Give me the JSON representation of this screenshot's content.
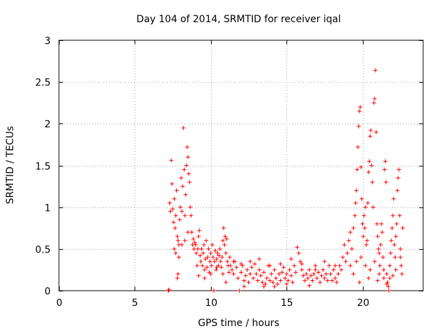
{
  "chart_data": {
    "type": "scatter",
    "title": "Day 104 of 2014, SRMTID for receiver iqal",
    "xlabel": "GPS time / hours",
    "ylabel": "SRMTID / TECUs",
    "xlim": [
      0,
      24
    ],
    "ylim": [
      0,
      3
    ],
    "x_ticks": [
      0,
      5,
      10,
      15,
      20
    ],
    "y_ticks": [
      0,
      0.5,
      1,
      1.5,
      2,
      2.5,
      3
    ],
    "x_tick_labels": [
      "0",
      "5",
      "10",
      "15",
      "20"
    ],
    "y_tick_labels": [
      "0",
      "0.5",
      "1",
      "1.5",
      "2",
      "2.5",
      "3"
    ],
    "grid": true,
    "marker": "+",
    "series": [
      {
        "name": "SRMTID",
        "color": "#ff0000",
        "points": [
          [
            7.2,
            0.0
          ],
          [
            7.25,
            0.01
          ],
          [
            7.3,
            1.05
          ],
          [
            7.35,
            0.95
          ],
          [
            7.4,
            1.56
          ],
          [
            7.45,
            1.28
          ],
          [
            7.5,
            0.98
          ],
          [
            7.55,
            0.82
          ],
          [
            7.6,
            1.1
          ],
          [
            7.65,
            0.75
          ],
          [
            7.7,
            0.9
          ],
          [
            7.75,
            1.2
          ],
          [
            7.8,
            0.65
          ],
          [
            7.85,
            0.6
          ],
          [
            7.9,
            0.55
          ],
          [
            7.95,
            0.85
          ],
          [
            8.0,
            1.0
          ],
          [
            8.05,
            1.35
          ],
          [
            8.1,
            0.95
          ],
          [
            8.15,
            1.25
          ],
          [
            8.2,
            1.95
          ],
          [
            8.25,
            1.45
          ],
          [
            8.3,
            0.9
          ],
          [
            8.35,
            1.15
          ],
          [
            8.4,
            1.5
          ],
          [
            8.45,
            1.72
          ],
          [
            8.5,
            1.6
          ],
          [
            8.55,
            1.4
          ],
          [
            8.6,
            1.3
          ],
          [
            8.65,
            1.0
          ],
          [
            8.7,
            0.9
          ],
          [
            8.75,
            0.7
          ],
          [
            8.8,
            0.55
          ],
          [
            8.85,
            0.62
          ],
          [
            8.9,
            0.5
          ],
          [
            8.95,
            0.58
          ],
          [
            7.7,
            0.45
          ],
          [
            7.9,
            0.4
          ],
          [
            8.1,
            0.55
          ],
          [
            8.3,
            0.6
          ],
          [
            8.5,
            0.7
          ],
          [
            7.6,
            0.5
          ],
          [
            7.8,
            0.15
          ],
          [
            7.85,
            0.2
          ],
          [
            9.0,
            0.55
          ],
          [
            9.05,
            0.45
          ],
          [
            9.1,
            0.3
          ],
          [
            9.15,
            0.5
          ],
          [
            9.2,
            0.65
          ],
          [
            9.25,
            0.72
          ],
          [
            9.3,
            0.42
          ],
          [
            9.35,
            0.35
          ],
          [
            9.4,
            0.5
          ],
          [
            9.45,
            0.3
          ],
          [
            9.5,
            0.45
          ],
          [
            9.55,
            0.55
          ],
          [
            9.6,
            0.25
          ],
          [
            9.65,
            0.38
          ],
          [
            9.7,
            0.6
          ],
          [
            9.75,
            0.28
          ],
          [
            9.8,
            0.4
          ],
          [
            9.85,
            0.5
          ],
          [
            9.9,
            0.22
          ],
          [
            9.95,
            0.35
          ],
          [
            10.0,
            0.45
          ],
          [
            10.05,
            0.3
          ],
          [
            10.1,
            0.55
          ],
          [
            10.15,
            0.4
          ],
          [
            10.2,
            0.0
          ],
          [
            10.25,
            0.35
          ],
          [
            10.3,
            0.48
          ],
          [
            10.35,
            0.25
          ],
          [
            10.4,
            0.38
          ],
          [
            10.45,
            0.45
          ],
          [
            10.5,
            0.3
          ],
          [
            10.55,
            0.42
          ],
          [
            10.6,
            0.5
          ],
          [
            10.65,
            0.35
          ],
          [
            10.7,
            0.28
          ],
          [
            10.75,
            0.4
          ],
          [
            10.8,
            0.6
          ],
          [
            10.85,
            0.75
          ],
          [
            10.9,
            0.55
          ],
          [
            10.95,
            0.65
          ],
          [
            11.0,
            0.45
          ],
          [
            11.05,
            0.62
          ],
          [
            11.1,
            0.35
          ],
          [
            11.15,
            0.3
          ],
          [
            11.2,
            0.22
          ],
          [
            11.25,
            0.4
          ],
          [
            9.2,
            0.18
          ],
          [
            9.6,
            0.15
          ],
          [
            10.0,
            0.2
          ],
          [
            10.4,
            0.28
          ],
          [
            10.8,
            0.2
          ],
          [
            11.3,
            0.3
          ],
          [
            11.4,
            0.25
          ],
          [
            11.5,
            0.2
          ],
          [
            11.6,
            0.35
          ],
          [
            11.7,
            0.28
          ],
          [
            11.8,
            0.15
          ],
          [
            11.9,
            0.0
          ],
          [
            12.0,
            0.22
          ],
          [
            12.1,
            0.3
          ],
          [
            12.2,
            0.12
          ],
          [
            12.3,
            0.18
          ],
          [
            12.4,
            0.25
          ],
          [
            12.5,
            0.1
          ],
          [
            12.6,
            0.2
          ],
          [
            12.7,
            0.28
          ],
          [
            12.8,
            0.15
          ],
          [
            12.9,
            0.32
          ],
          [
            13.0,
            0.2
          ],
          [
            13.1,
            0.12
          ],
          [
            13.2,
            0.25
          ],
          [
            13.3,
            0.18
          ],
          [
            13.4,
            0.1
          ],
          [
            13.5,
            0.22
          ],
          [
            13.6,
            0.08
          ],
          [
            13.7,
            0.15
          ],
          [
            13.8,
            0.3
          ],
          [
            13.9,
            0.12
          ],
          [
            14.0,
            0.2
          ],
          [
            14.1,
            0.1
          ],
          [
            14.2,
            0.25
          ],
          [
            14.3,
            0.15
          ],
          [
            14.4,
            0.08
          ],
          [
            14.5,
            0.2
          ],
          [
            14.6,
            0.12
          ],
          [
            14.7,
            0.22
          ],
          [
            14.8,
            0.28
          ],
          [
            14.9,
            0.15
          ],
          [
            15.0,
            0.2
          ],
          [
            15.1,
            0.12
          ],
          [
            15.2,
            0.25
          ],
          [
            15.3,
            0.18
          ],
          [
            15.4,
            0.1
          ],
          [
            15.5,
            0.3
          ],
          [
            15.6,
            0.22
          ],
          [
            15.7,
            0.52
          ],
          [
            15.8,
            0.45
          ],
          [
            15.9,
            0.35
          ],
          [
            16.0,
            0.25
          ],
          [
            16.1,
            0.18
          ],
          [
            16.2,
            0.12
          ],
          [
            16.3,
            0.2
          ],
          [
            16.4,
            0.15
          ],
          [
            16.5,
            0.25
          ],
          [
            16.6,
            0.18
          ],
          [
            16.7,
            0.12
          ],
          [
            16.8,
            0.2
          ],
          [
            16.9,
            0.3
          ],
          [
            17.0,
            0.15
          ],
          [
            17.1,
            0.22
          ],
          [
            17.2,
            0.1
          ],
          [
            17.3,
            0.18
          ],
          [
            17.4,
            0.25
          ],
          [
            17.5,
            0.15
          ],
          [
            17.6,
            0.2
          ],
          [
            17.7,
            0.12
          ],
          [
            17.8,
            0.3
          ],
          [
            17.9,
            0.2
          ],
          [
            18.0,
            0.12
          ],
          [
            18.1,
            0.25
          ],
          [
            18.2,
            0.15
          ],
          [
            18.3,
            0.1
          ],
          [
            18.4,
            0.2
          ],
          [
            18.5,
            0.3
          ],
          [
            18.6,
            0.25
          ],
          [
            11.5,
            0.35
          ],
          [
            12.0,
            0.32
          ],
          [
            12.6,
            0.35
          ],
          [
            13.2,
            0.38
          ],
          [
            13.9,
            0.3
          ],
          [
            14.6,
            0.32
          ],
          [
            15.3,
            0.38
          ],
          [
            16.0,
            0.32
          ],
          [
            16.9,
            0.25
          ],
          [
            17.5,
            0.35
          ],
          [
            18.2,
            0.3
          ],
          [
            11.0,
            0.1
          ],
          [
            12.2,
            0.05
          ],
          [
            13.5,
            0.05
          ],
          [
            14.2,
            0.05
          ],
          [
            15.0,
            0.08
          ],
          [
            16.5,
            0.06
          ],
          [
            18.7,
            0.4
          ],
          [
            18.8,
            0.55
          ],
          [
            18.9,
            0.35
          ],
          [
            19.0,
            0.45
          ],
          [
            19.1,
            0.6
          ],
          [
            19.2,
            0.7
          ],
          [
            19.3,
            0.5
          ],
          [
            19.4,
            0.75
          ],
          [
            19.5,
            0.9
          ],
          [
            19.55,
            1.05
          ],
          [
            19.6,
            1.2
          ],
          [
            19.65,
            1.45
          ],
          [
            19.7,
            1.72
          ],
          [
            19.75,
            1.97
          ],
          [
            19.8,
            2.15
          ],
          [
            19.85,
            2.2
          ],
          [
            19.9,
            1.48
          ],
          [
            19.95,
            1.1
          ],
          [
            20.0,
            0.8
          ],
          [
            20.05,
            0.65
          ],
          [
            20.1,
            0.9
          ],
          [
            20.15,
            0.75
          ],
          [
            20.2,
            1.0
          ],
          [
            20.25,
            0.55
          ],
          [
            20.3,
            0.6
          ],
          [
            20.35,
            1.05
          ],
          [
            20.4,
            1.42
          ],
          [
            20.45,
            1.55
          ],
          [
            20.5,
            1.85
          ],
          [
            20.55,
            1.92
          ],
          [
            20.6,
            1.5
          ],
          [
            20.65,
            1.3
          ],
          [
            20.7,
            1.0
          ],
          [
            20.75,
            2.25
          ],
          [
            20.8,
            2.3
          ],
          [
            20.85,
            2.64
          ],
          [
            20.9,
            1.9
          ],
          [
            20.95,
            0.8
          ],
          [
            21.0,
            0.65
          ],
          [
            21.05,
            0.5
          ],
          [
            21.1,
            0.45
          ],
          [
            21.15,
            0.3
          ],
          [
            21.2,
            0.55
          ],
          [
            21.25,
            0.8
          ],
          [
            21.3,
            0.7
          ],
          [
            21.35,
            0.4
          ],
          [
            21.4,
            0.25
          ],
          [
            21.45,
            1.45
          ],
          [
            21.5,
            1.55
          ],
          [
            21.55,
            1.3
          ],
          [
            21.6,
            0.2
          ],
          [
            21.65,
            0.1
          ],
          [
            21.7,
            0.05
          ],
          [
            21.75,
            0.0
          ],
          [
            21.8,
            0.15
          ],
          [
            21.85,
            0.45
          ],
          [
            21.9,
            0.6
          ],
          [
            21.95,
            0.75
          ],
          [
            22.0,
            0.9
          ],
          [
            22.05,
            1.1
          ],
          [
            22.1,
            0.55
          ],
          [
            22.15,
            0.4
          ],
          [
            22.2,
            0.65
          ],
          [
            22.25,
            0.8
          ],
          [
            22.3,
            1.2
          ],
          [
            22.35,
            1.35
          ],
          [
            22.4,
            1.45
          ],
          [
            22.45,
            0.9
          ],
          [
            22.5,
            0.5
          ],
          [
            22.55,
            0.3
          ],
          [
            22.6,
            0.2
          ],
          [
            22.65,
            0.75
          ],
          [
            19.2,
            0.3
          ],
          [
            19.6,
            0.35
          ],
          [
            19.9,
            0.4
          ],
          [
            20.2,
            0.3
          ],
          [
            20.5,
            0.25
          ],
          [
            20.8,
            0.35
          ],
          [
            21.1,
            0.2
          ],
          [
            21.4,
            0.15
          ],
          [
            21.8,
            0.3
          ],
          [
            22.2,
            0.25
          ],
          [
            22.5,
            0.4
          ],
          [
            19.4,
            0.2
          ],
          [
            19.8,
            0.1
          ],
          [
            20.4,
            0.15
          ],
          [
            21.0,
            0.12
          ],
          [
            21.6,
            0.08
          ],
          [
            22.0,
            0.18
          ]
        ]
      }
    ]
  }
}
